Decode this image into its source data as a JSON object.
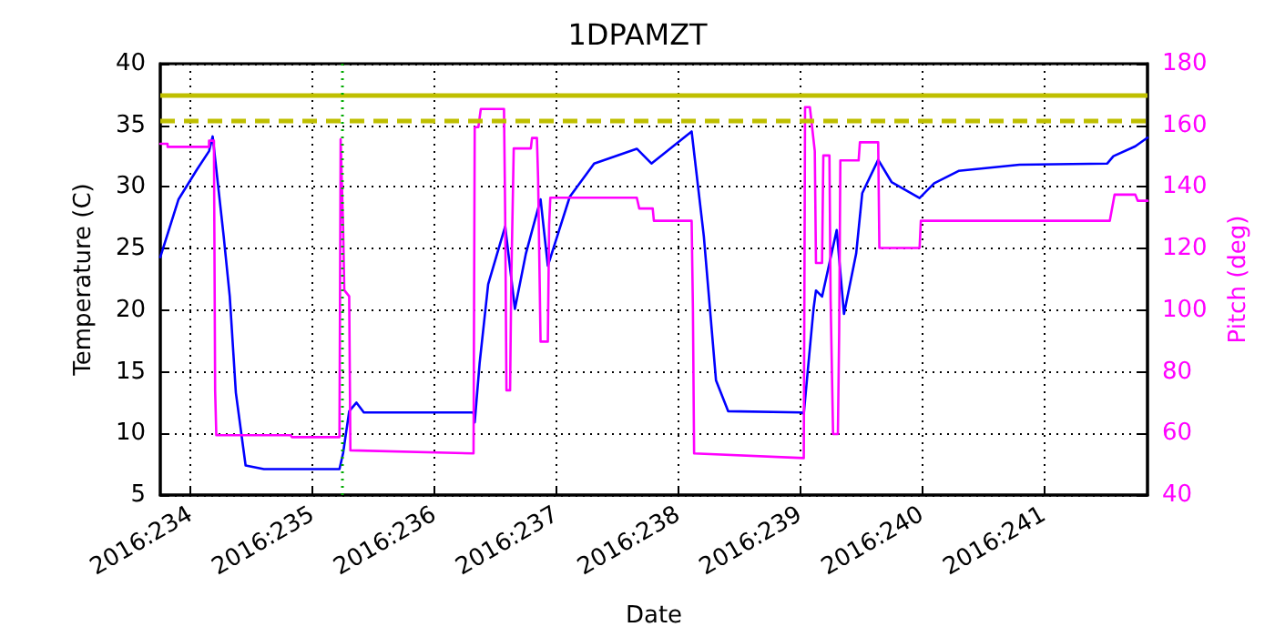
{
  "chart_data": {
    "type": "line",
    "title": "1DPAMZT",
    "xlabel": "Date",
    "ylabel": "Temperature (C)",
    "y2label": "Pitch (deg)",
    "xlim": [
      "2016-08-20T18:00",
      "2016-08-28T20:24"
    ],
    "xticks": [
      {
        "value": "2016-08-21",
        "label": "2016:234"
      },
      {
        "value": "2016-08-22",
        "label": "2016:235"
      },
      {
        "value": "2016-08-23",
        "label": "2016:236"
      },
      {
        "value": "2016-08-24",
        "label": "2016:237"
      },
      {
        "value": "2016-08-25",
        "label": "2016:238"
      },
      {
        "value": "2016-08-26",
        "label": "2016:239"
      },
      {
        "value": "2016-08-27",
        "label": "2016:240"
      },
      {
        "value": "2016-08-28",
        "label": "2016:241"
      }
    ],
    "ylim": [
      5,
      40
    ],
    "yticks": [
      5,
      10,
      15,
      20,
      25,
      30,
      35,
      40
    ],
    "y2lim": [
      40,
      180
    ],
    "y2ticks": [
      40,
      60,
      80,
      100,
      120,
      140,
      160,
      180
    ],
    "grid": true,
    "marker": "none",
    "line_style": "solid",
    "series": [
      {
        "color": "#0000ff",
        "x": [
          "2016-08-20T18:00",
          "2016-08-20T21:36",
          "2016-08-21T01:12",
          "2016-08-21T03:36",
          "2016-08-21T04:19",
          "2016-08-21T06:29",
          "2016-08-21T07:41",
          "2016-08-21T08:53",
          "2016-08-21T10:48",
          "2016-08-21T14:24",
          "2016-08-22T05:17",
          "2016-08-22T06:00",
          "2016-08-22T07:12",
          "2016-08-22T08:38",
          "2016-08-22T10:05",
          "2016-08-23T07:41",
          "2016-08-23T07:55",
          "2016-08-23T08:53",
          "2016-08-23T10:34",
          "2016-08-23T13:55",
          "2016-08-23T15:50",
          "2016-08-23T18:00",
          "2016-08-23T20:53",
          "2016-08-23T22:19",
          "2016-08-24T02:38",
          "2016-08-24T07:26",
          "2016-08-24T15:50",
          "2016-08-24T18:43",
          "2016-08-25T02:38",
          "2016-08-25T05:02",
          "2016-08-25T07:26",
          "2016-08-25T09:50",
          "2016-08-26T00:14",
          "2016-08-26T00:43",
          "2016-08-26T02:38",
          "2016-08-26T03:07",
          "2016-08-26T04:19",
          "2016-08-26T07:12",
          "2016-08-26T08:38",
          "2016-08-26T11:02",
          "2016-08-26T12:14",
          "2016-08-26T15:22",
          "2016-08-26T18:00",
          "2016-08-26T23:31",
          "2016-08-27T02:24",
          "2016-08-27T07:12",
          "2016-08-27T19:12",
          "2016-08-28T12:29",
          "2016-08-28T13:41",
          "2016-08-28T18:00",
          "2016-08-28T20:24"
        ],
        "values": [
          24.3,
          29.0,
          31.4,
          32.9,
          34.1,
          26.0,
          21.1,
          13.3,
          7.4,
          7.1,
          7.1,
          8.4,
          11.8,
          12.5,
          11.7,
          11.7,
          10.9,
          15.7,
          22.1,
          26.8,
          20.1,
          24.6,
          29.0,
          23.6,
          29.2,
          31.9,
          33.1,
          31.9,
          34.5,
          26.0,
          14.3,
          11.8,
          11.7,
          11.6,
          20.1,
          21.6,
          21.1,
          26.5,
          19.7,
          24.6,
          29.5,
          32.2,
          30.4,
          29.1,
          30.3,
          31.3,
          31.8,
          31.9,
          32.5,
          33.3,
          34.0
        ]
      },
      {
        "color": "#ff00ff",
        "axis": "y2",
        "x": [
          "2016-08-20T18:00",
          "2016-08-20T19:26",
          "2016-08-20T19:26",
          "2016-08-21T03:36",
          "2016-08-21T03:36",
          "2016-08-21T04:34",
          "2016-08-21T04:48",
          "2016-08-21T05:02",
          "2016-08-21T19:41",
          "2016-08-21T19:55",
          "2016-08-22T05:17",
          "2016-08-22T05:31",
          "2016-08-22T06:00",
          "2016-08-22T06:14",
          "2016-08-22T07:12",
          "2016-08-22T07:26",
          "2016-08-23T07:41",
          "2016-08-23T07:55",
          "2016-08-23T08:38",
          "2016-08-23T09:07",
          "2016-08-23T13:41",
          "2016-08-23T13:55",
          "2016-08-23T14:10",
          "2016-08-23T14:53",
          "2016-08-23T15:07",
          "2016-08-23T15:36",
          "2016-08-23T18:58",
          "2016-08-23T19:12",
          "2016-08-23T20:10",
          "2016-08-23T20:24",
          "2016-08-23T20:53",
          "2016-08-23T22:19",
          "2016-08-23T22:34",
          "2016-08-23T22:48",
          "2016-08-24T15:50",
          "2016-08-24T16:19",
          "2016-08-24T18:58",
          "2016-08-24T19:12",
          "2016-08-25T02:38",
          "2016-08-25T02:53",
          "2016-08-25T03:07",
          "2016-08-26T00:43",
          "2016-08-26T00:58",
          "2016-08-26T01:55",
          "2016-08-26T02:53",
          "2016-08-26T03:07",
          "2016-08-26T04:19",
          "2016-08-26T04:34",
          "2016-08-26T05:46",
          "2016-08-26T06:00",
          "2016-08-26T06:29",
          "2016-08-26T07:26",
          "2016-08-26T07:41",
          "2016-08-26T07:55",
          "2016-08-26T11:31",
          "2016-08-26T11:46",
          "2016-08-26T15:22",
          "2016-08-26T15:36",
          "2016-08-26T23:31",
          "2016-08-26T23:46",
          "2016-08-28T12:58",
          "2016-08-28T13:55",
          "2016-08-28T18:00",
          "2016-08-28T18:29",
          "2016-08-28T20:24"
        ],
        "values": [
          154,
          154,
          153,
          153,
          155,
          155,
          74,
          59.4,
          59.4,
          58.8,
          58.8,
          155.5,
          127,
          106.5,
          104.5,
          54.5,
          53.5,
          159.4,
          159.4,
          165.3,
          165.3,
          131,
          74,
          74,
          109.4,
          152.5,
          152.5,
          155.9,
          155.9,
          142.8,
          89.8,
          89.8,
          127.5,
          136.5,
          136.5,
          133,
          133,
          129,
          129,
          100.6,
          53.5,
          52,
          165.9,
          165.9,
          151.6,
          115.3,
          115.3,
          150.2,
          150.2,
          103.5,
          59.8,
          59.8,
          92.8,
          148.6,
          148.6,
          154.5,
          154.5,
          120.2,
          120.2,
          129,
          129,
          137.5,
          137.5,
          135.5,
          135.5
        ]
      }
    ],
    "ref_lines": [
      {
        "axis": "y",
        "value": 37.5,
        "color": "#bfbf00",
        "line_style": "solid"
      },
      {
        "axis": "y",
        "value": 35.4,
        "color": "#bfbf00",
        "line_style": "dashed"
      },
      {
        "axis": "x",
        "value": "2016-08-22T05:46",
        "color": "#00aa00",
        "line_style": "dotted"
      }
    ]
  }
}
